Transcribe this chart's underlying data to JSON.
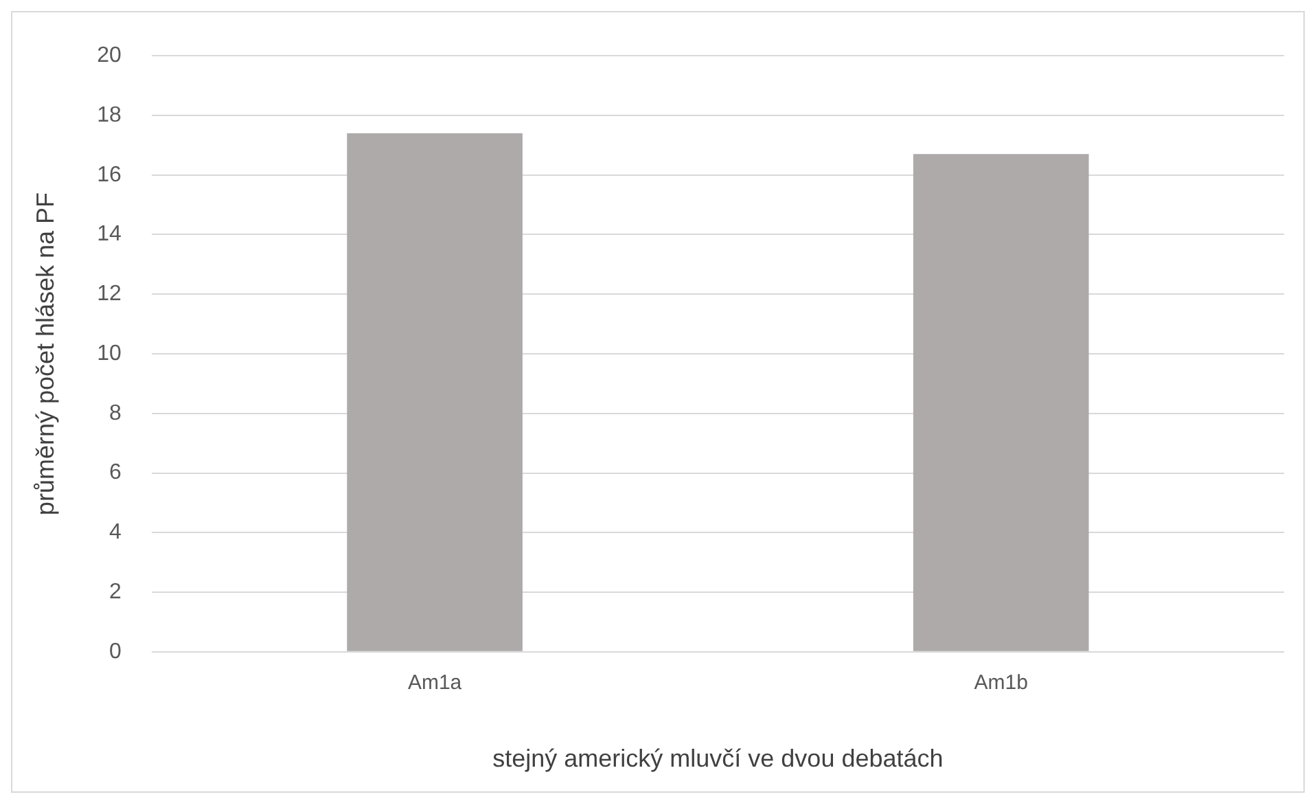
{
  "chart_data": {
    "type": "bar",
    "xlabel": "stejný americký mluvčí ve dvou debatách",
    "ylabel": "průměrný počet hlásek na PF",
    "categories": [
      "Am1a",
      "Am1b"
    ],
    "values": [
      17.4,
      16.7
    ],
    "color": "#aeaaaa",
    "ylim": [
      0,
      20
    ],
    "yticks": [
      0,
      2,
      4,
      6,
      8,
      10,
      12,
      14,
      16,
      18,
      20
    ],
    "grid": "y",
    "legend": false
  }
}
